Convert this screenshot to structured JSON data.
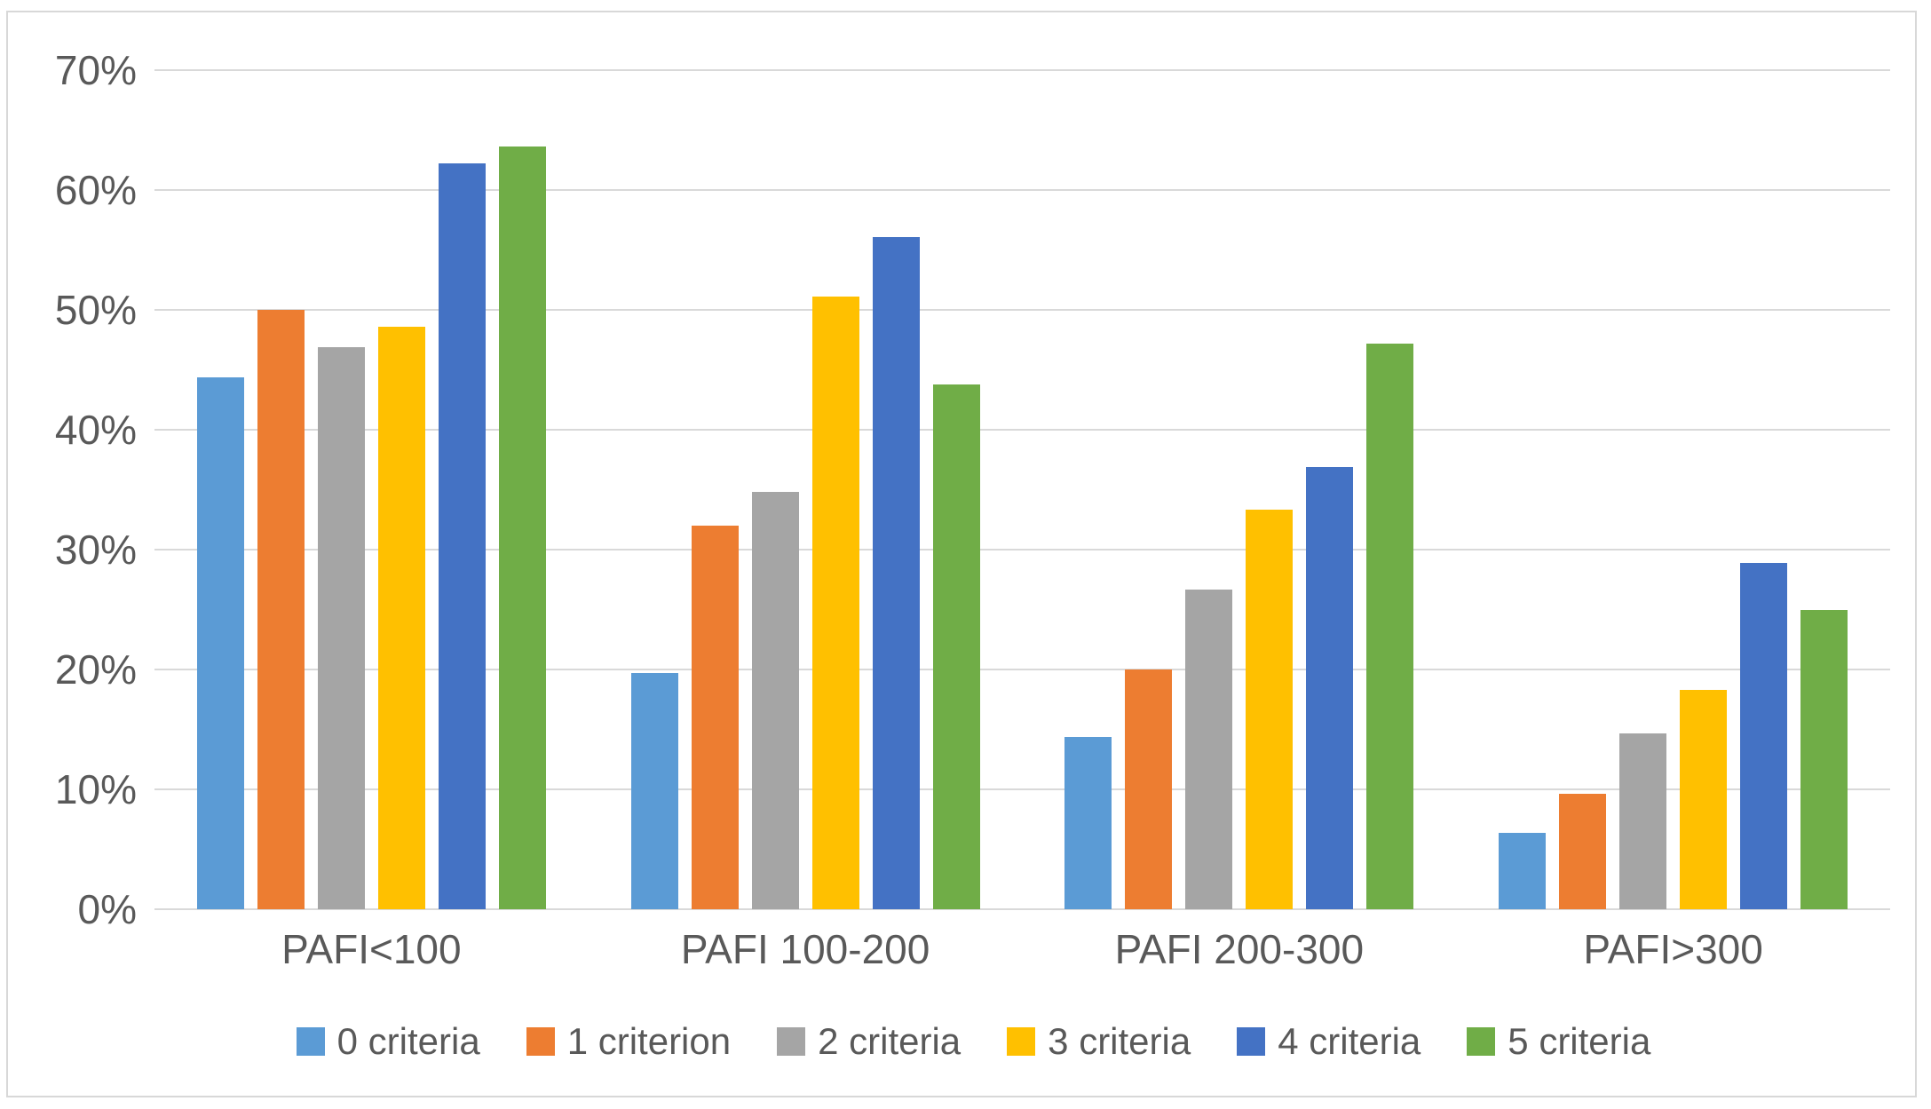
{
  "chart_data": {
    "type": "bar",
    "title": "",
    "xlabel": "",
    "ylabel": "",
    "categories": [
      "PAFI<100",
      "PAFI 100-200",
      "PAFI 200-300",
      "PAFI>300"
    ],
    "series": [
      {
        "name": "0 criteria",
        "color": "#5B9BD5",
        "values": [
          44.4,
          19.7,
          14.4,
          6.4
        ]
      },
      {
        "name": "1 criterion",
        "color": "#ED7D31",
        "values": [
          50.0,
          32.0,
          20.0,
          9.6
        ]
      },
      {
        "name": "2 criteria",
        "color": "#A5A5A5",
        "values": [
          46.9,
          34.8,
          26.7,
          14.7
        ]
      },
      {
        "name": "3 criteria",
        "color": "#FFC000",
        "values": [
          48.6,
          51.1,
          33.3,
          18.3
        ]
      },
      {
        "name": "4 criteria",
        "color": "#4472C4",
        "values": [
          62.2,
          56.1,
          36.9,
          28.9
        ]
      },
      {
        "name": "5 criteria",
        "color": "#70AD47",
        "values": [
          63.6,
          43.8,
          47.2,
          25.0
        ]
      }
    ],
    "ylim": [
      0,
      70
    ],
    "ytick_step": 10,
    "ytick_labels": [
      "0%",
      "10%",
      "20%",
      "30%",
      "40%",
      "50%",
      "60%",
      "70%"
    ],
    "grid": true,
    "legend_position": "bottom"
  },
  "colors": {
    "grid": "#d9d9d9",
    "axis_text": "#595959",
    "frame_border": "#d8d8d8",
    "background": "#ffffff"
  }
}
